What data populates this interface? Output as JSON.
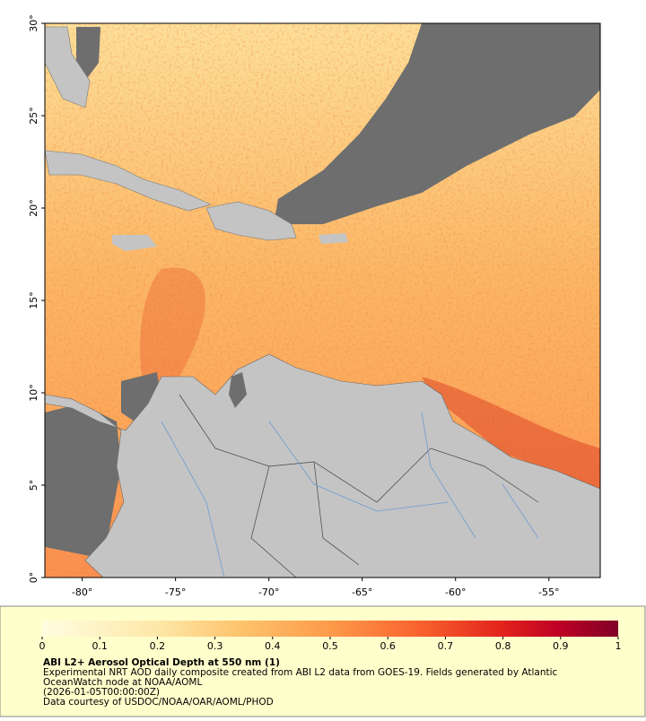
{
  "map": {
    "xlim": [
      -82,
      -52.25
    ],
    "ylim": [
      0,
      30
    ],
    "xticks": [
      {
        "value": -80,
        "label": "-80°"
      },
      {
        "value": -75,
        "label": "-75°"
      },
      {
        "value": -70,
        "label": "-70°"
      },
      {
        "value": -65,
        "label": "-65°"
      },
      {
        "value": -60,
        "label": "-60°"
      },
      {
        "value": -55,
        "label": "-55°"
      }
    ],
    "yticks": [
      {
        "value": 0,
        "label": "0°"
      },
      {
        "value": 5,
        "label": "5°"
      },
      {
        "value": 10,
        "label": "10°"
      },
      {
        "value": 15,
        "label": "15°"
      },
      {
        "value": 20,
        "label": "20°"
      },
      {
        "value": 25,
        "label": "25°"
      },
      {
        "value": 30,
        "label": "30°"
      }
    ]
  },
  "colorbar": {
    "lim": [
      0,
      1
    ],
    "ticks": [
      0,
      0.1,
      0.2,
      0.3,
      0.4,
      0.5,
      0.6,
      0.7,
      0.8,
      0.9,
      1
    ]
  },
  "caption": {
    "title": "ABI L2+ Aerosol Optical Depth at 550 nm (1)",
    "lines": [
      "Experimental NRT AOD daily composite created from ABI L2 data from GOES-19. Fields generated by Atlantic",
      "OceanWatch node at NOAA/AOML",
      "(2026-01-05T00:00:00Z)",
      "Data courtesy of USDOC/NOAA/OAR/AOML/PHOD"
    ]
  }
}
